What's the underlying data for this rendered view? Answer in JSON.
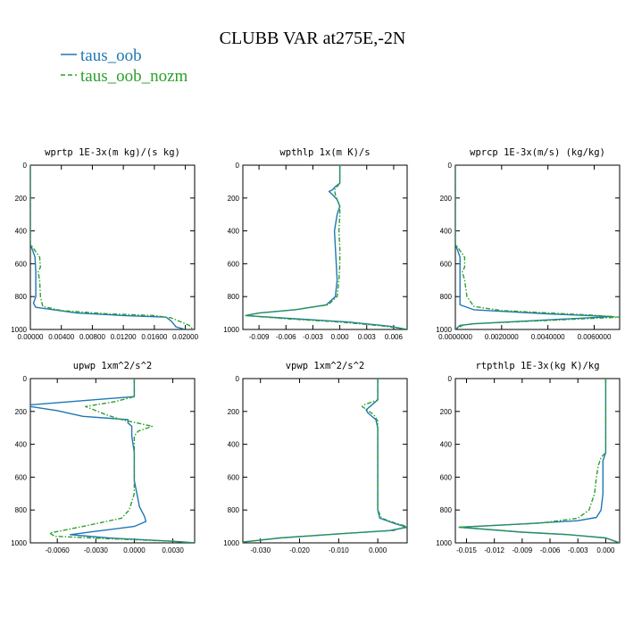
{
  "title": "CLUBB VAR at275E,-2N",
  "legend": [
    {
      "label": "taus_oob",
      "color": "#1f77b4",
      "dash": false
    },
    {
      "label": "taus_oob_nozm",
      "color": "#2ca02c",
      "dash": true
    }
  ],
  "chart_data": [
    {
      "type": "line",
      "title": "wprtp  1E-3x(m kg)/(s kg)",
      "xlim": [
        0.0,
        0.0212
      ],
      "ylim": [
        1000,
        0
      ],
      "xticks": [
        0.0,
        0.004,
        0.008,
        0.012,
        0.016,
        0.02
      ],
      "xtick_labels": [
        "0.00000",
        "0.00400",
        "0.00800",
        "0.01200",
        "0.01600",
        "0.02000"
      ],
      "yticks": [
        0,
        200,
        400,
        600,
        800,
        1000
      ],
      "ytick_labels": [
        "0",
        "200",
        "400",
        "600",
        "800",
        "1000"
      ],
      "series": [
        {
          "name": "taus_oob",
          "points": [
            [
              0,
              0
            ],
            [
              0,
              480
            ],
            [
              0.0006,
              560
            ],
            [
              0.0007,
              650
            ],
            [
              0.0007,
              800
            ],
            [
              0.0004,
              840
            ],
            [
              0.0007,
              865
            ],
            [
              0.006,
              900
            ],
            [
              0.012,
              915
            ],
            [
              0.0175,
              925
            ],
            [
              0.0182,
              950
            ],
            [
              0.0188,
              985
            ],
            [
              0.02,
              1000
            ]
          ]
        },
        {
          "name": "taus_oob_nozm",
          "points": [
            [
              0,
              0
            ],
            [
              0,
              480
            ],
            [
              0.0012,
              560
            ],
            [
              0.0013,
              620
            ],
            [
              0.001,
              650
            ],
            [
              0.0012,
              700
            ],
            [
              0.0013,
              800
            ],
            [
              0.0016,
              860
            ],
            [
              0.004,
              885
            ],
            [
              0.01,
              905
            ],
            [
              0.016,
              915
            ],
            [
              0.0182,
              930
            ],
            [
              0.0205,
              975
            ],
            [
              0.021,
              1000
            ]
          ]
        }
      ]
    },
    {
      "type": "line",
      "title": "wpthlp  1x(m K)/s",
      "xlim": [
        -0.0108,
        0.0075
      ],
      "ylim": [
        1000,
        0
      ],
      "xticks": [
        -0.009,
        -0.006,
        -0.003,
        0.0,
        0.003,
        0.006
      ],
      "xtick_labels": [
        "-0.009",
        "-0.006",
        "-0.003",
        "0.000",
        "0.003",
        "0.006"
      ],
      "yticks": [
        0,
        200,
        400,
        600,
        800,
        1000
      ],
      "ytick_labels": [
        "0",
        "200",
        "400",
        "600",
        "800",
        "1000"
      ],
      "series": [
        {
          "name": "taus_oob",
          "points": [
            [
              0,
              0
            ],
            [
              0,
              110
            ],
            [
              -0.0005,
              130
            ],
            [
              -0.0008,
              150
            ],
            [
              -0.0012,
              160
            ],
            [
              -0.0008,
              180
            ],
            [
              -0.0003,
              210
            ],
            [
              0,
              250
            ],
            [
              -0.0003,
              300
            ],
            [
              -0.0006,
              400
            ],
            [
              -0.0005,
              500
            ],
            [
              -0.0004,
              600
            ],
            [
              -0.0003,
              700
            ],
            [
              -0.0005,
              800
            ],
            [
              -0.0015,
              850
            ],
            [
              -0.005,
              880
            ],
            [
              -0.009,
              900
            ],
            [
              -0.0105,
              915
            ],
            [
              -0.005,
              935
            ],
            [
              0.001,
              955
            ],
            [
              0.0055,
              980
            ],
            [
              0.0075,
              1000
            ]
          ]
        },
        {
          "name": "taus_oob_nozm",
          "points": [
            [
              0,
              0
            ],
            [
              0,
              110
            ],
            [
              -0.0003,
              130
            ],
            [
              -0.0006,
              150
            ],
            [
              -0.0005,
              180
            ],
            [
              -0.0003,
              210
            ],
            [
              0,
              250
            ],
            [
              0,
              300
            ],
            [
              -0.0001,
              400
            ],
            [
              0,
              500
            ],
            [
              0,
              600
            ],
            [
              -0.0001,
              700
            ],
            [
              -0.0003,
              800
            ],
            [
              -0.0013,
              850
            ],
            [
              -0.005,
              880
            ],
            [
              -0.009,
              900
            ],
            [
              -0.0105,
              915
            ],
            [
              -0.006,
              935
            ],
            [
              0,
              955
            ],
            [
              0.005,
              980
            ],
            [
              0.0075,
              1000
            ]
          ]
        }
      ]
    },
    {
      "type": "line",
      "title": "wprcp  1E-3x(m/s) (kg/kg)",
      "xlim": [
        0.0,
        0.0071
      ],
      "ylim": [
        1000,
        0
      ],
      "xticks": [
        0.0,
        0.002,
        0.004,
        0.006
      ],
      "xtick_labels": [
        "0.0000000",
        "0.0020000",
        "0.0040000",
        "0.0060000"
      ],
      "yticks": [
        0,
        200,
        400,
        600,
        800,
        1000
      ],
      "ytick_labels": [
        "0",
        "200",
        "400",
        "600",
        "800",
        "1000"
      ],
      "series": [
        {
          "name": "taus_oob",
          "points": [
            [
              0,
              0
            ],
            [
              0,
              480
            ],
            [
              0.0002,
              560
            ],
            [
              0.0002,
              650
            ],
            [
              0.0002,
              800
            ],
            [
              0.0002,
              850
            ],
            [
              0.0008,
              880
            ],
            [
              0.004,
              905
            ],
            [
              0.0068,
              922
            ],
            [
              0.0035,
              945
            ],
            [
              0.0008,
              965
            ],
            [
              0.0002,
              975
            ],
            [
              0,
              1000
            ]
          ]
        },
        {
          "name": "taus_oob_nozm",
          "points": [
            [
              0,
              0
            ],
            [
              0,
              480
            ],
            [
              0.0004,
              560
            ],
            [
              0.0004,
              620
            ],
            [
              0.0003,
              650
            ],
            [
              0.0004,
              700
            ],
            [
              0.0005,
              800
            ],
            [
              0.0008,
              860
            ],
            [
              0.002,
              885
            ],
            [
              0.0058,
              912
            ],
            [
              0.0071,
              925
            ],
            [
              0.004,
              945
            ],
            [
              0.0008,
              965
            ],
            [
              0.0003,
              975
            ],
            [
              0,
              1000
            ]
          ]
        }
      ]
    },
    {
      "type": "line",
      "title": "upwp  1xm^2/s^2",
      "xlim": [
        -0.0081,
        0.0047
      ],
      "ylim": [
        1000,
        0
      ],
      "xticks": [
        -0.006,
        -0.003,
        0.0,
        0.003
      ],
      "xtick_labels": [
        "-0.0060",
        "-0.0030",
        "0.0000",
        "0.0030"
      ],
      "yticks": [
        0,
        200,
        400,
        600,
        800,
        1000
      ],
      "ytick_labels": [
        "0",
        "200",
        "400",
        "600",
        "800",
        "1000"
      ],
      "series": [
        {
          "name": "taus_oob",
          "points": [
            [
              0,
              0
            ],
            [
              0,
              110
            ],
            [
              -0.0081,
              160
            ],
            [
              -0.0081,
              170
            ],
            [
              -0.006,
              195
            ],
            [
              -0.004,
              230
            ],
            [
              -0.0005,
              250
            ],
            [
              -0.0005,
              270
            ],
            [
              -0.0002,
              290
            ],
            [
              -0.0002,
              350
            ],
            [
              0,
              450
            ],
            [
              0,
              550
            ],
            [
              0,
              620
            ],
            [
              0.0002,
              700
            ],
            [
              0.0004,
              780
            ],
            [
              0.0008,
              840
            ],
            [
              0.0009,
              870
            ],
            [
              0,
              900
            ],
            [
              -0.003,
              930
            ],
            [
              -0.005,
              950
            ],
            [
              -0.002,
              970
            ],
            [
              0.003,
              990
            ],
            [
              0.0047,
              1000
            ]
          ]
        },
        {
          "name": "taus_oob_nozm",
          "points": [
            [
              0,
              0
            ],
            [
              0,
              110
            ],
            [
              -0.0015,
              140
            ],
            [
              -0.0038,
              170
            ],
            [
              -0.0022,
              220
            ],
            [
              -0.001,
              250
            ],
            [
              0.0014,
              290
            ],
            [
              0.0003,
              320
            ],
            [
              0,
              350
            ],
            [
              0,
              450
            ],
            [
              0,
              550
            ],
            [
              0,
              620
            ],
            [
              0,
              700
            ],
            [
              -0.0004,
              800
            ],
            [
              -0.001,
              850
            ],
            [
              -0.004,
              900
            ],
            [
              -0.0066,
              940
            ],
            [
              -0.0062,
              960
            ],
            [
              -0.002,
              975
            ],
            [
              0.003,
              990
            ],
            [
              0.0047,
              1000
            ]
          ]
        }
      ]
    },
    {
      "type": "line",
      "title": "vpwp  1xm^2/s^2",
      "xlim": [
        -0.0345,
        0.0075
      ],
      "ylim": [
        1000,
        0
      ],
      "xticks": [
        -0.03,
        -0.02,
        -0.01,
        0.0
      ],
      "xtick_labels": [
        "-0.030",
        "-0.020",
        "-0.010",
        "0.000"
      ],
      "yticks": [
        0,
        200,
        400,
        600,
        800,
        1000
      ],
      "ytick_labels": [
        "0",
        "200",
        "400",
        "600",
        "800",
        "1000"
      ],
      "series": [
        {
          "name": "taus_oob",
          "points": [
            [
              0,
              0
            ],
            [
              0,
              130
            ],
            [
              -0.002,
              170
            ],
            [
              -0.003,
              190
            ],
            [
              -0.0025,
              210
            ],
            [
              -0.0005,
              250
            ],
            [
              0,
              300
            ],
            [
              0,
              400
            ],
            [
              0,
              500
            ],
            [
              0,
              600
            ],
            [
              0,
              700
            ],
            [
              0,
              800
            ],
            [
              0.0005,
              850
            ],
            [
              0.004,
              880
            ],
            [
              0.0075,
              905
            ],
            [
              0.003,
              925
            ],
            [
              -0.01,
              945
            ],
            [
              -0.025,
              970
            ],
            [
              -0.0345,
              995
            ]
          ]
        },
        {
          "name": "taus_oob_nozm",
          "points": [
            [
              0,
              0
            ],
            [
              0,
              130
            ],
            [
              -0.0035,
              160
            ],
            [
              -0.004,
              170
            ],
            [
              -0.0028,
              190
            ],
            [
              -0.001,
              220
            ],
            [
              0,
              260
            ],
            [
              0,
              400
            ],
            [
              0,
              500
            ],
            [
              0,
              600
            ],
            [
              0,
              700
            ],
            [
              0,
              800
            ],
            [
              0.001,
              850
            ],
            [
              0.0045,
              880
            ],
            [
              0.0075,
              900
            ],
            [
              0.004,
              925
            ],
            [
              -0.01,
              945
            ],
            [
              -0.025,
              970
            ],
            [
              -0.0345,
              995
            ]
          ]
        }
      ]
    },
    {
      "type": "line",
      "title": "rtpthlp  1E-3x(kg K)/kg",
      "xlim": [
        -0.0162,
        0.0015
      ],
      "ylim": [
        1000,
        0
      ],
      "xticks": [
        -0.015,
        -0.012,
        -0.009,
        -0.006,
        -0.003,
        0.0
      ],
      "xtick_labels": [
        "-0.015",
        "-0.012",
        "-0.009",
        "-0.006",
        "-0.003",
        "0.000"
      ],
      "yticks": [
        0,
        200,
        400,
        600,
        800,
        1000
      ],
      "ytick_labels": [
        "0",
        "200",
        "400",
        "600",
        "800",
        "1000"
      ],
      "series": [
        {
          "name": "taus_oob",
          "points": [
            [
              0,
              0
            ],
            [
              0,
              450
            ],
            [
              -0.0003,
              500
            ],
            [
              -0.0003,
              700
            ],
            [
              -0.0005,
              800
            ],
            [
              -0.001,
              845
            ],
            [
              -0.003,
              865
            ],
            [
              -0.009,
              885
            ],
            [
              -0.0158,
              905
            ],
            [
              -0.009,
              935
            ],
            [
              -0.004,
              950
            ],
            [
              0,
              970
            ],
            [
              0.0015,
              1000
            ]
          ]
        },
        {
          "name": "taus_oob_nozm",
          "points": [
            [
              0,
              0
            ],
            [
              0,
              450
            ],
            [
              -0.0005,
              480
            ],
            [
              -0.0008,
              530
            ],
            [
              -0.001,
              600
            ],
            [
              -0.0012,
              700
            ],
            [
              -0.0018,
              800
            ],
            [
              -0.003,
              850
            ],
            [
              -0.007,
              880
            ],
            [
              -0.0158,
              905
            ],
            [
              -0.009,
              935
            ],
            [
              -0.004,
              950
            ],
            [
              0,
              970
            ],
            [
              0.0015,
              1000
            ]
          ]
        }
      ]
    }
  ]
}
